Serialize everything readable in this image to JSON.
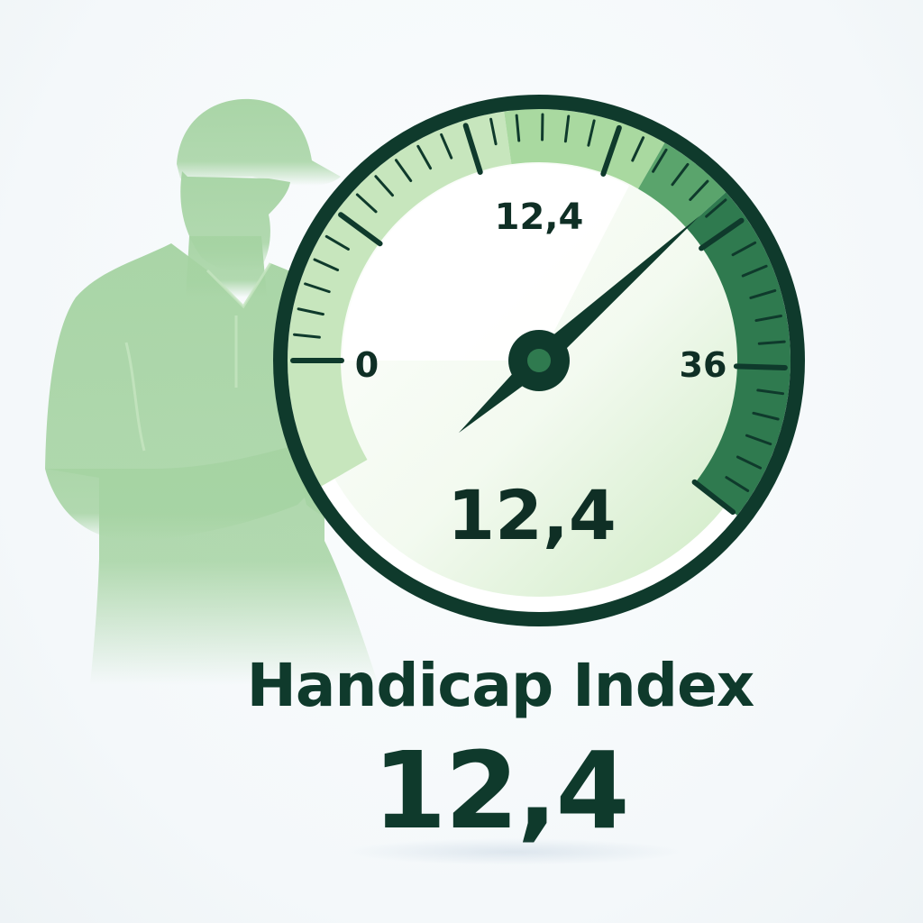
{
  "gauge": {
    "min_label": "0",
    "max_label": "36",
    "top_label": "12,4",
    "center_value": "12,4",
    "value": 12.4,
    "min": 0,
    "max": 36
  },
  "caption": {
    "title": "Handicap Index",
    "value": "12,4"
  },
  "colors": {
    "dark_green": "#0f3a2c",
    "mid_green": "#2f7a4f",
    "light_green": "#a8d8a0",
    "figure_green": "#a8d4a4",
    "background": "#f6f9fb"
  },
  "icons": [
    "golfer-illustration",
    "phone-icon",
    "gauge-needle"
  ]
}
